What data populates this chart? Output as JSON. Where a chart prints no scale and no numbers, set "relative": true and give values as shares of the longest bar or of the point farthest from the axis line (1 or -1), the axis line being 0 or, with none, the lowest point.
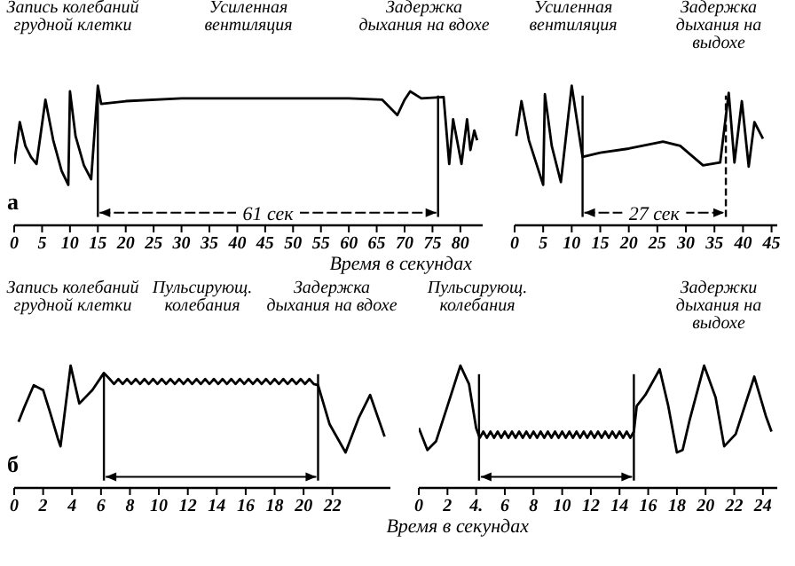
{
  "chart_data": [
    {
      "type": "line",
      "title": "а",
      "xlabel": "Время в секундах",
      "relative": true,
      "annotations": [
        "Запись колебаний грудной клетки",
        "Усиленная вентиляция",
        "Задержка дыхания на вдохе"
      ],
      "series": [
        {
          "color": "#000000",
          "x": [
            0,
            1,
            2,
            3,
            4,
            5.6,
            7,
            8.5,
            9.7,
            10,
            11,
            12.5,
            13.8,
            15,
            15.6,
            20,
            30,
            40,
            50,
            60,
            66,
            68.7,
            70,
            71,
            73,
            77,
            78,
            78.7,
            80.2,
            81.2,
            81.8,
            82.5,
            83
          ],
          "values": [
            0.44,
            0.74,
            0.57,
            0.49,
            0.44,
            0.9,
            0.61,
            0.39,
            0.29,
            0.96,
            0.64,
            0.43,
            0.33,
            1,
            0.87,
            0.89,
            0.91,
            0.91,
            0.91,
            0.91,
            0.9,
            0.79,
            0.9,
            0.96,
            0.91,
            0.92,
            0.44,
            0.76,
            0.44,
            0.76,
            0.54,
            0.68,
            0.61
          ]
        }
      ],
      "xlim": [
        0,
        84
      ],
      "xticks": [
        0,
        5,
        10,
        15,
        20,
        25,
        30,
        35,
        40,
        45,
        50,
        55,
        60,
        65,
        70,
        75,
        80
      ],
      "ref_lines": [
        {
          "axis": "x",
          "value": 15,
          "label": "61 сек",
          "color": "#000000"
        },
        {
          "axis": "x",
          "value": 76,
          "color": "#000000"
        }
      ]
    },
    {
      "type": "line",
      "relative": true,
      "annotations": [
        "Усиленная вентиляция",
        "Задержка дыхания на выдохе"
      ],
      "series": [
        {
          "color": "#000000",
          "x": [
            0.3,
            1.2,
            2.5,
            5,
            5.3,
            6.5,
            8.1,
            10,
            11.9,
            15,
            20,
            26,
            29,
            31,
            33,
            36,
            37.5,
            38.5,
            39.8,
            41,
            42,
            43.5
          ],
          "values": [
            0.64,
            0.89,
            0.61,
            0.29,
            0.94,
            0.57,
            0.31,
            1,
            0.49,
            0.52,
            0.55,
            0.6,
            0.57,
            0.5,
            0.43,
            0.45,
            0.95,
            0.45,
            0.89,
            0.42,
            0.74,
            0.62
          ]
        }
      ],
      "xlim": [
        0,
        46
      ],
      "xticks": [
        0,
        5,
        10,
        15,
        20,
        25,
        30,
        35,
        40,
        45
      ],
      "ref_lines": [
        {
          "axis": "x",
          "value": 11.9,
          "label": "27 сек",
          "color": "#000000"
        },
        {
          "axis": "x",
          "value": 37,
          "color": "#000000",
          "line_style": "dashed"
        }
      ]
    },
    {
      "type": "line",
      "title": "б",
      "xlabel": "Время в секундах",
      "relative": true,
      "annotations": [
        "Запись колебаний грудной клетки",
        "Пульсирующ. колебания",
        "Задержка дыхания на вдохе"
      ],
      "series": [
        {
          "color": "#000000",
          "x": [
            0.3,
            0.7,
            1.35,
            2,
            2.5,
            3,
            3.2,
            3.9,
            4.5,
            5.4,
            6.2,
            6.6,
            6.9,
            7.2,
            7.5,
            7.8,
            8.1,
            8.4,
            8.7,
            9,
            9.3,
            9.6,
            9.9,
            10.2,
            10.5,
            10.8,
            11.1,
            11.4,
            11.7,
            12,
            12.3,
            12.6,
            12.9,
            13.2,
            13.5,
            13.8,
            14.1,
            14.4,
            14.7,
            15,
            15.3,
            15.6,
            15.9,
            16.2,
            16.5,
            16.8,
            17.1,
            17.4,
            17.7,
            18,
            18.3,
            18.6,
            18.9,
            19.2,
            19.5,
            19.8,
            20.1,
            20.4,
            20.7,
            21,
            21.8,
            22.9,
            23.8,
            24.6,
            25.6
          ],
          "values": [
            0.54,
            0.66,
            0.84,
            0.8,
            0.61,
            0.41,
            0.34,
            1,
            0.69,
            0.8,
            0.94,
            0.89,
            0.85,
            0.89,
            0.85,
            0.89,
            0.85,
            0.89,
            0.85,
            0.89,
            0.85,
            0.89,
            0.85,
            0.89,
            0.85,
            0.89,
            0.85,
            0.89,
            0.85,
            0.89,
            0.85,
            0.89,
            0.85,
            0.89,
            0.85,
            0.89,
            0.85,
            0.89,
            0.85,
            0.89,
            0.85,
            0.89,
            0.85,
            0.89,
            0.85,
            0.89,
            0.85,
            0.89,
            0.85,
            0.89,
            0.85,
            0.89,
            0.85,
            0.89,
            0.85,
            0.89,
            0.85,
            0.89,
            0.85,
            0.84,
            0.52,
            0.29,
            0.57,
            0.76,
            0.42
          ]
        }
      ],
      "xlim": [
        0,
        26
      ],
      "xticks": [
        0,
        2,
        4,
        6,
        8,
        10,
        12,
        14,
        16,
        18,
        20,
        22
      ],
      "ref_lines": [
        {
          "axis": "x",
          "value": 6.2,
          "color": "#000000"
        },
        {
          "axis": "x",
          "value": 21,
          "color": "#000000"
        }
      ]
    },
    {
      "type": "line",
      "relative": true,
      "annotations": [
        "Пульсирующ. колебания",
        "Задержки дыхания на выдохе"
      ],
      "series": [
        {
          "color": "#000000",
          "x": [
            0,
            0.6,
            1.2,
            2,
            2.9,
            3.5,
            4,
            4.25,
            4.5,
            4.75,
            5,
            5.25,
            5.5,
            5.75,
            6,
            6.25,
            6.5,
            6.75,
            7,
            7.25,
            7.5,
            7.75,
            8,
            8.25,
            8.5,
            8.75,
            9,
            9.25,
            9.5,
            9.75,
            10,
            10.25,
            10.5,
            10.75,
            11,
            11.25,
            11.5,
            11.75,
            12,
            12.25,
            12.5,
            12.75,
            13,
            13.25,
            13.5,
            13.75,
            14,
            14.25,
            14.5,
            14.75,
            15,
            15.2,
            15.8,
            16.8,
            17.4,
            18,
            18.4,
            18.9,
            19.9,
            20.7,
            21.3,
            22.1,
            23.4,
            24.2,
            24.6
          ],
          "values": [
            0.49,
            0.31,
            0.38,
            0.67,
            1,
            0.85,
            0.49,
            0.41,
            0.46,
            0.41,
            0.46,
            0.41,
            0.46,
            0.41,
            0.46,
            0.41,
            0.46,
            0.41,
            0.46,
            0.41,
            0.46,
            0.41,
            0.46,
            0.41,
            0.46,
            0.41,
            0.46,
            0.41,
            0.46,
            0.41,
            0.46,
            0.41,
            0.46,
            0.41,
            0.46,
            0.41,
            0.46,
            0.41,
            0.46,
            0.41,
            0.46,
            0.41,
            0.46,
            0.41,
            0.46,
            0.41,
            0.46,
            0.41,
            0.46,
            0.41,
            0.46,
            0.67,
            0.76,
            0.97,
            0.67,
            0.29,
            0.31,
            0.56,
            1,
            0.74,
            0.34,
            0.44,
            0.91,
            0.59,
            0.46
          ]
        }
      ],
      "xlim": [
        0,
        25
      ],
      "xticks": [
        0,
        2,
        {
          "value": 4,
          "label": "4."
        },
        6,
        8,
        10,
        12,
        14,
        16,
        18,
        20,
        22,
        24
      ],
      "ref_lines": [
        {
          "axis": "x",
          "value": 4.2,
          "color": "#000000"
        },
        {
          "axis": "x",
          "value": 15,
          "color": "#000000"
        }
      ]
    }
  ]
}
